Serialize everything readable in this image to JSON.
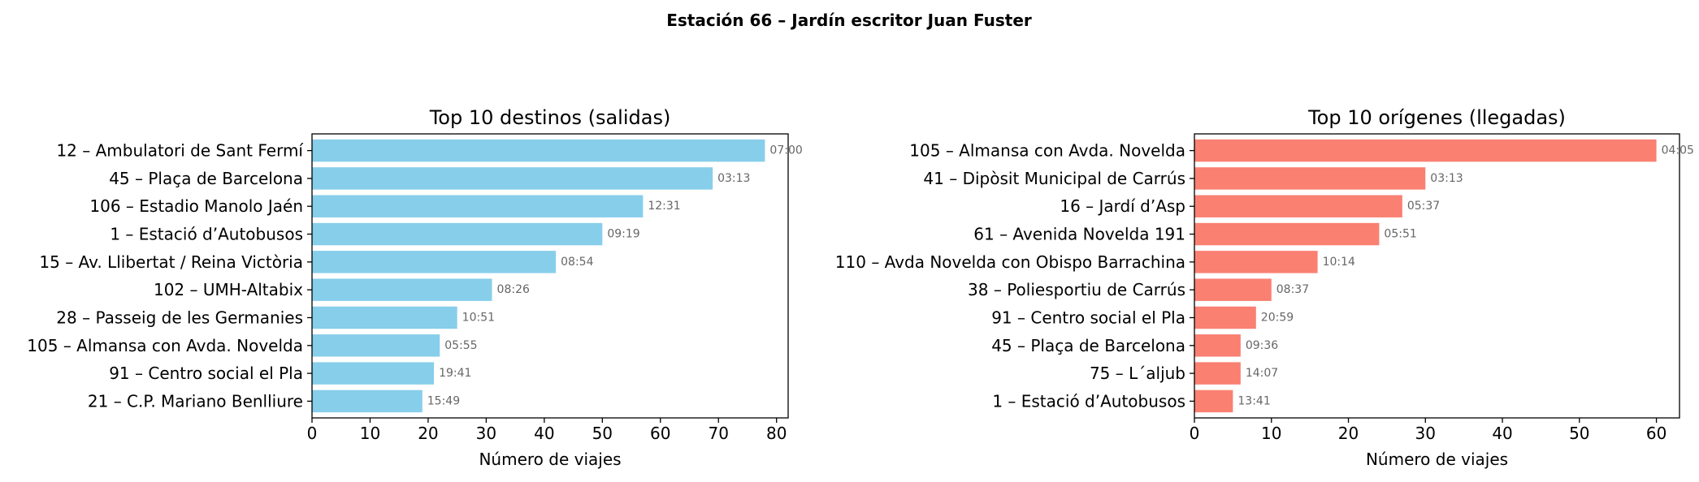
{
  "figure_title": "Estación 66 – Jardín escritor Juan Fuster",
  "chart_data": [
    {
      "type": "bar",
      "orientation": "horizontal",
      "title": "Top 10 destinos (salidas)",
      "xlabel": "Número de viajes",
      "ylabel": "",
      "xlim": [
        0,
        82
      ],
      "xticks": [
        0,
        10,
        20,
        30,
        40,
        50,
        60,
        70,
        80
      ],
      "color": "#87ceeb",
      "grid": false,
      "categories": [
        "12 – Ambulatori de Sant Fermí",
        "45 – Plaça de Barcelona",
        "106 – Estadio Manolo Jaén",
        "1 – Estació d’Autobusos",
        "15 – Av. Llibertat / Reina Victòria",
        "102 – UMH-Altabix",
        "28 – Passeig de les Germanies",
        "105 – Almansa con Avda. Novelda",
        "91 – Centro social el Pla",
        "21 – C.P. Mariano Benlliure"
      ],
      "values": [
        78,
        69,
        57,
        50,
        42,
        31,
        25,
        22,
        21,
        19
      ],
      "bar_labels": [
        "07:00",
        "03:13",
        "12:31",
        "09:19",
        "08:54",
        "08:26",
        "10:51",
        "05:55",
        "19:41",
        "15:49"
      ]
    },
    {
      "type": "bar",
      "orientation": "horizontal",
      "title": "Top 10 orígenes (llegadas)",
      "xlabel": "Número de viajes",
      "ylabel": "",
      "xlim": [
        0,
        63
      ],
      "xticks": [
        0,
        10,
        20,
        30,
        40,
        50,
        60
      ],
      "color": "#fa8072",
      "grid": false,
      "categories": [
        "105 – Almansa con Avda. Novelda",
        "41 – Dipòsit Municipal de Carrús",
        "16 – Jardí d’Asp",
        "61 – Avenida Novelda 191",
        "110 – Avda Novelda con Obispo Barrachina",
        "38 – Poliesportiu de Carrús",
        "91 – Centro social el Pla",
        "45 – Plaça de Barcelona",
        "75 – L´aljub",
        "1 – Estació d’Autobusos"
      ],
      "values": [
        60,
        30,
        27,
        24,
        16,
        10,
        8,
        6,
        6,
        5
      ],
      "bar_labels": [
        "04:05",
        "03:13",
        "05:37",
        "05:51",
        "10:14",
        "08:37",
        "20:59",
        "09:36",
        "14:07",
        "13:41"
      ]
    }
  ]
}
